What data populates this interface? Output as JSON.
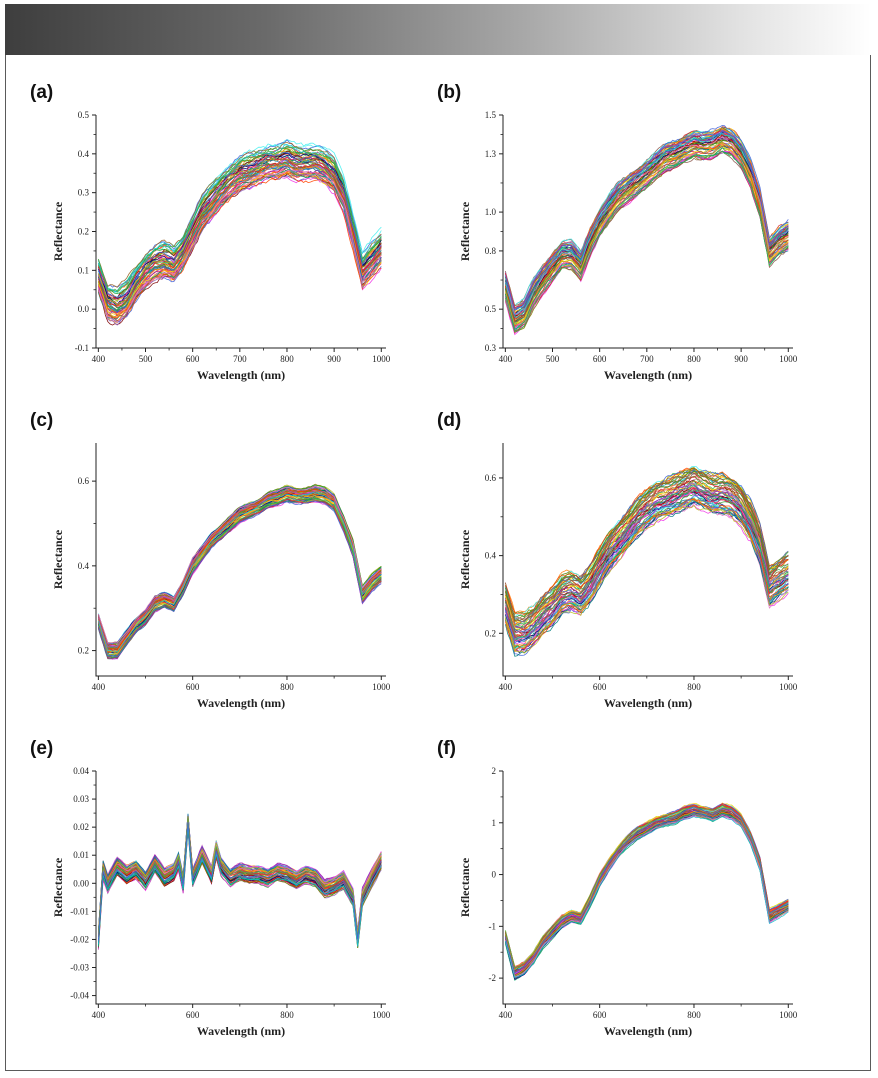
{
  "header": {
    "accent": "#4a4a4a"
  },
  "chart_data": [
    {
      "id": "a",
      "label": "(a)",
      "type": "line",
      "xlabel": "Wavelength (nm)",
      "ylabel": "Reflectance",
      "xlim": [
        395,
        1010
      ],
      "ylim": [
        -0.1,
        0.5
      ],
      "xticks": [
        400,
        500,
        600,
        700,
        800,
        900,
        1000
      ],
      "xtick_labels": [
        "400",
        "500",
        "600",
        "700",
        "800",
        "900",
        "1000"
      ],
      "yticks": [
        -0.1,
        0.0,
        0.1,
        0.2,
        0.3,
        0.4,
        0.5
      ],
      "ytick_labels": [
        "-0.1",
        "0.0",
        "0.1",
        "0.2",
        "0.3",
        "0.4",
        "0.5"
      ],
      "x": [
        400,
        420,
        440,
        460,
        480,
        500,
        520,
        540,
        560,
        580,
        600,
        620,
        640,
        660,
        680,
        700,
        720,
        740,
        760,
        780,
        800,
        820,
        840,
        860,
        880,
        900,
        920,
        940,
        960,
        980,
        1000
      ],
      "series_mean": [
        0.09,
        0.02,
        0.01,
        0.03,
        0.07,
        0.1,
        0.12,
        0.13,
        0.12,
        0.15,
        0.2,
        0.25,
        0.28,
        0.31,
        0.33,
        0.35,
        0.36,
        0.37,
        0.38,
        0.38,
        0.39,
        0.38,
        0.38,
        0.38,
        0.37,
        0.35,
        0.3,
        0.2,
        0.1,
        0.13,
        0.16
      ],
      "spread": 0.045,
      "n_series": 60
    },
    {
      "id": "b",
      "label": "(b)",
      "type": "line",
      "xlabel": "Wavelength (nm)",
      "ylabel": "Reflectance",
      "xlim": [
        395,
        1010
      ],
      "ylim": [
        0.3,
        1.5
      ],
      "xticks": [
        400,
        500,
        600,
        700,
        800,
        900,
        1000
      ],
      "xtick_labels": [
        "400",
        "500",
        "600",
        "700",
        "800",
        "900",
        "1000"
      ],
      "yticks": [
        0.3,
        0.5,
        0.8,
        1.0,
        1.3,
        1.5
      ],
      "ytick_labels": [
        "0.3",
        "0.5",
        "0.8",
        "1.0",
        "1.3",
        "1.5"
      ],
      "x": [
        400,
        420,
        440,
        460,
        480,
        500,
        520,
        540,
        560,
        580,
        600,
        620,
        640,
        660,
        680,
        700,
        720,
        740,
        760,
        780,
        800,
        820,
        840,
        860,
        880,
        900,
        920,
        940,
        960,
        980,
        1000
      ],
      "series_mean": [
        0.62,
        0.45,
        0.48,
        0.58,
        0.65,
        0.72,
        0.78,
        0.78,
        0.72,
        0.85,
        0.95,
        1.02,
        1.08,
        1.12,
        1.16,
        1.2,
        1.24,
        1.28,
        1.3,
        1.33,
        1.35,
        1.34,
        1.35,
        1.38,
        1.36,
        1.3,
        1.2,
        1.05,
        0.8,
        0.85,
        0.88
      ],
      "spread": 0.07,
      "n_series": 60
    },
    {
      "id": "c",
      "label": "(c)",
      "type": "line",
      "xlabel": "Wavelength (nm)",
      "ylabel": "Reflectance",
      "xlim": [
        395,
        1010
      ],
      "ylim": [
        0.14,
        0.69
      ],
      "xticks": [
        400,
        600,
        800,
        1000
      ],
      "xtick_labels": [
        "400",
        "600",
        "800",
        "1000"
      ],
      "yticks": [
        0.2,
        0.4,
        0.6
      ],
      "ytick_labels": [
        "0.2",
        "0.4",
        "0.6"
      ],
      "x": [
        400,
        420,
        440,
        460,
        480,
        500,
        520,
        540,
        560,
        580,
        600,
        620,
        640,
        660,
        680,
        700,
        720,
        740,
        760,
        780,
        800,
        820,
        840,
        860,
        880,
        900,
        920,
        940,
        960,
        980,
        1000
      ],
      "series_mean": [
        0.27,
        0.2,
        0.2,
        0.23,
        0.26,
        0.28,
        0.31,
        0.32,
        0.31,
        0.35,
        0.4,
        0.43,
        0.46,
        0.48,
        0.5,
        0.52,
        0.53,
        0.54,
        0.555,
        0.56,
        0.57,
        0.565,
        0.565,
        0.57,
        0.565,
        0.55,
        0.5,
        0.44,
        0.33,
        0.36,
        0.38
      ],
      "spread": 0.018,
      "n_series": 60
    },
    {
      "id": "d",
      "label": "(d)",
      "type": "line",
      "xlabel": "Wavelength (nm)",
      "ylabel": "Reflectance",
      "xlim": [
        395,
        1010
      ],
      "ylim": [
        0.09,
        0.69
      ],
      "xticks": [
        400,
        600,
        800,
        1000
      ],
      "xtick_labels": [
        "400",
        "600",
        "800",
        "1000"
      ],
      "yticks": [
        0.2,
        0.4,
        0.6
      ],
      "ytick_labels": [
        "0.2",
        "0.4",
        "0.6"
      ],
      "x": [
        400,
        420,
        440,
        460,
        480,
        500,
        520,
        540,
        560,
        580,
        600,
        620,
        640,
        660,
        680,
        700,
        720,
        740,
        760,
        780,
        800,
        820,
        840,
        860,
        880,
        900,
        920,
        940,
        960,
        980,
        1000
      ],
      "series_mean": [
        0.28,
        0.2,
        0.2,
        0.22,
        0.25,
        0.27,
        0.3,
        0.31,
        0.3,
        0.33,
        0.37,
        0.41,
        0.44,
        0.47,
        0.5,
        0.52,
        0.54,
        0.55,
        0.56,
        0.57,
        0.58,
        0.57,
        0.56,
        0.56,
        0.55,
        0.53,
        0.49,
        0.43,
        0.32,
        0.34,
        0.36
      ],
      "spread": 0.05,
      "n_series": 60
    },
    {
      "id": "e",
      "label": "(e)",
      "type": "line",
      "xlabel": "Wavelength (nm)",
      "ylabel": "Reflectance",
      "xlim": [
        395,
        1010
      ],
      "ylim": [
        -0.043,
        0.04
      ],
      "xticks": [
        400,
        600,
        800,
        1000
      ],
      "xtick_labels": [
        "400",
        "600",
        "800",
        "1000"
      ],
      "yticks": [
        -0.04,
        -0.03,
        -0.02,
        -0.01,
        0.0,
        0.01,
        0.02,
        0.03,
        0.04
      ],
      "ytick_labels": [
        "-0.04",
        "-0.03",
        "-0.02",
        "-0.01",
        "0.00",
        "0.01",
        "0.02",
        "0.03",
        "0.04"
      ],
      "x": [
        400,
        410,
        420,
        440,
        460,
        480,
        500,
        520,
        540,
        560,
        570,
        580,
        590,
        600,
        620,
        640,
        650,
        660,
        680,
        700,
        720,
        740,
        760,
        780,
        800,
        820,
        840,
        860,
        880,
        900,
        920,
        940,
        950,
        960,
        980,
        1000
      ],
      "series_mean": [
        -0.02,
        0.005,
        0.0,
        0.006,
        0.003,
        0.005,
        0.001,
        0.007,
        0.002,
        0.004,
        0.008,
        0.0,
        0.022,
        0.002,
        0.01,
        0.003,
        0.012,
        0.006,
        0.002,
        0.004,
        0.003,
        0.003,
        0.002,
        0.004,
        0.003,
        0.001,
        0.003,
        0.002,
        -0.002,
        -0.001,
        0.001,
        -0.005,
        -0.02,
        -0.005,
        0.002,
        0.008
      ],
      "spread": 0.003,
      "n_series": 60
    },
    {
      "id": "f",
      "label": "(f)",
      "type": "line",
      "xlabel": "Wavelength (nm)",
      "ylabel": "Reflectance",
      "xlim": [
        395,
        1010
      ],
      "ylim": [
        -2.5,
        2.0
      ],
      "xticks": [
        400,
        600,
        800,
        1000
      ],
      "xtick_labels": [
        "400",
        "600",
        "800",
        "1000"
      ],
      "yticks": [
        -2,
        -1,
        0,
        1,
        2
      ],
      "ytick_labels": [
        "-2",
        "-1",
        "0",
        "1",
        "2"
      ],
      "x": [
        400,
        420,
        440,
        460,
        480,
        500,
        520,
        540,
        560,
        580,
        600,
        620,
        640,
        660,
        680,
        700,
        720,
        740,
        760,
        780,
        800,
        820,
        840,
        860,
        880,
        900,
        920,
        940,
        960,
        980,
        1000
      ],
      "series_mean": [
        -1.2,
        -1.9,
        -1.8,
        -1.6,
        -1.3,
        -1.1,
        -0.9,
        -0.8,
        -0.85,
        -0.5,
        -0.1,
        0.2,
        0.45,
        0.65,
        0.8,
        0.9,
        1.0,
        1.05,
        1.1,
        1.2,
        1.25,
        1.2,
        1.15,
        1.25,
        1.2,
        1.05,
        0.7,
        0.2,
        -0.8,
        -0.7,
        -0.6
      ],
      "spread": 0.12,
      "n_series": 60
    }
  ]
}
